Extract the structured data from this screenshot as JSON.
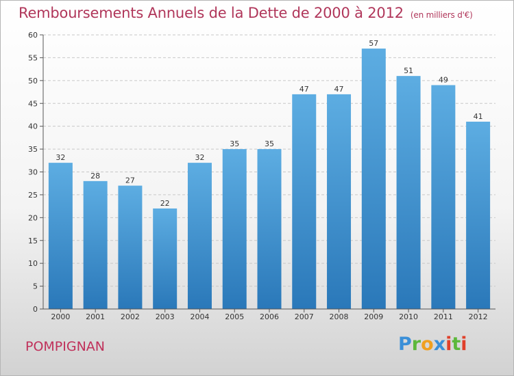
{
  "header": {
    "title": "Remboursements Annuels de la Dette de 2000 à 2012",
    "unit": "(en milliers d'€)"
  },
  "footer": {
    "town": "POMPIGNAN",
    "logo": [
      "P",
      "r",
      "o",
      "x",
      "i",
      "t",
      "i"
    ]
  },
  "colors": {
    "bar_top": "#5dade2",
    "bar_bottom": "#2a78b9",
    "axis": "#555555",
    "grid": "#c8c8c8",
    "title": "#b0365a"
  },
  "chart_data": {
    "type": "bar",
    "title": "Remboursements Annuels de la Dette de 2000 à 2012",
    "subtitle": "(en milliers d'€)",
    "xlabel": "",
    "ylabel": "",
    "categories": [
      "2000",
      "2001",
      "2002",
      "2003",
      "2004",
      "2005",
      "2006",
      "2007",
      "2008",
      "2009",
      "2010",
      "2011",
      "2012"
    ],
    "values": [
      32,
      28,
      27,
      22,
      32,
      35,
      35,
      47,
      47,
      57,
      51,
      49,
      41
    ],
    "ylim": [
      0,
      60
    ],
    "yticks": [
      0,
      5,
      10,
      15,
      20,
      25,
      30,
      35,
      40,
      45,
      50,
      55,
      60
    ],
    "grid": true,
    "legend": "none"
  }
}
